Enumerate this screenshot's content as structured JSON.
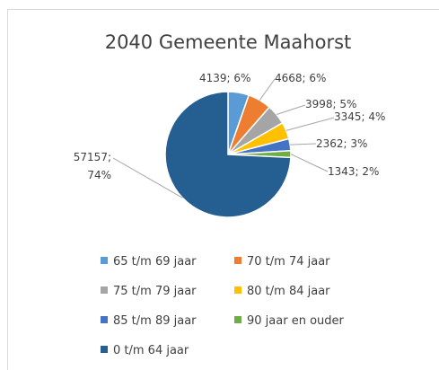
{
  "chart_data": {
    "type": "pie",
    "title": "2040 Gemeente Maahorst",
    "categories": [
      "65 t/m 69 jaar",
      "70 t/m 74 jaar",
      "75 t/m 79 jaar",
      "80 t/m 84 jaar",
      "85 t/m 89 jaar",
      "90 jaar en ouder",
      "0 t/m 64 jaar"
    ],
    "values": [
      4139,
      4668,
      3998,
      3345,
      2362,
      1343,
      57157
    ],
    "value_labels": [
      "4139; 6%",
      "4668; 6%",
      "3998; 5%",
      "3345; 4%",
      "2362; 3%",
      "1343; 2%",
      "57157; 74%"
    ],
    "colors": [
      "#5b9bd5",
      "#ed7d31",
      "#a5a5a5",
      "#ffc000",
      "#4472c4",
      "#70ad47",
      "#255e91"
    ],
    "legend": "bottom"
  }
}
